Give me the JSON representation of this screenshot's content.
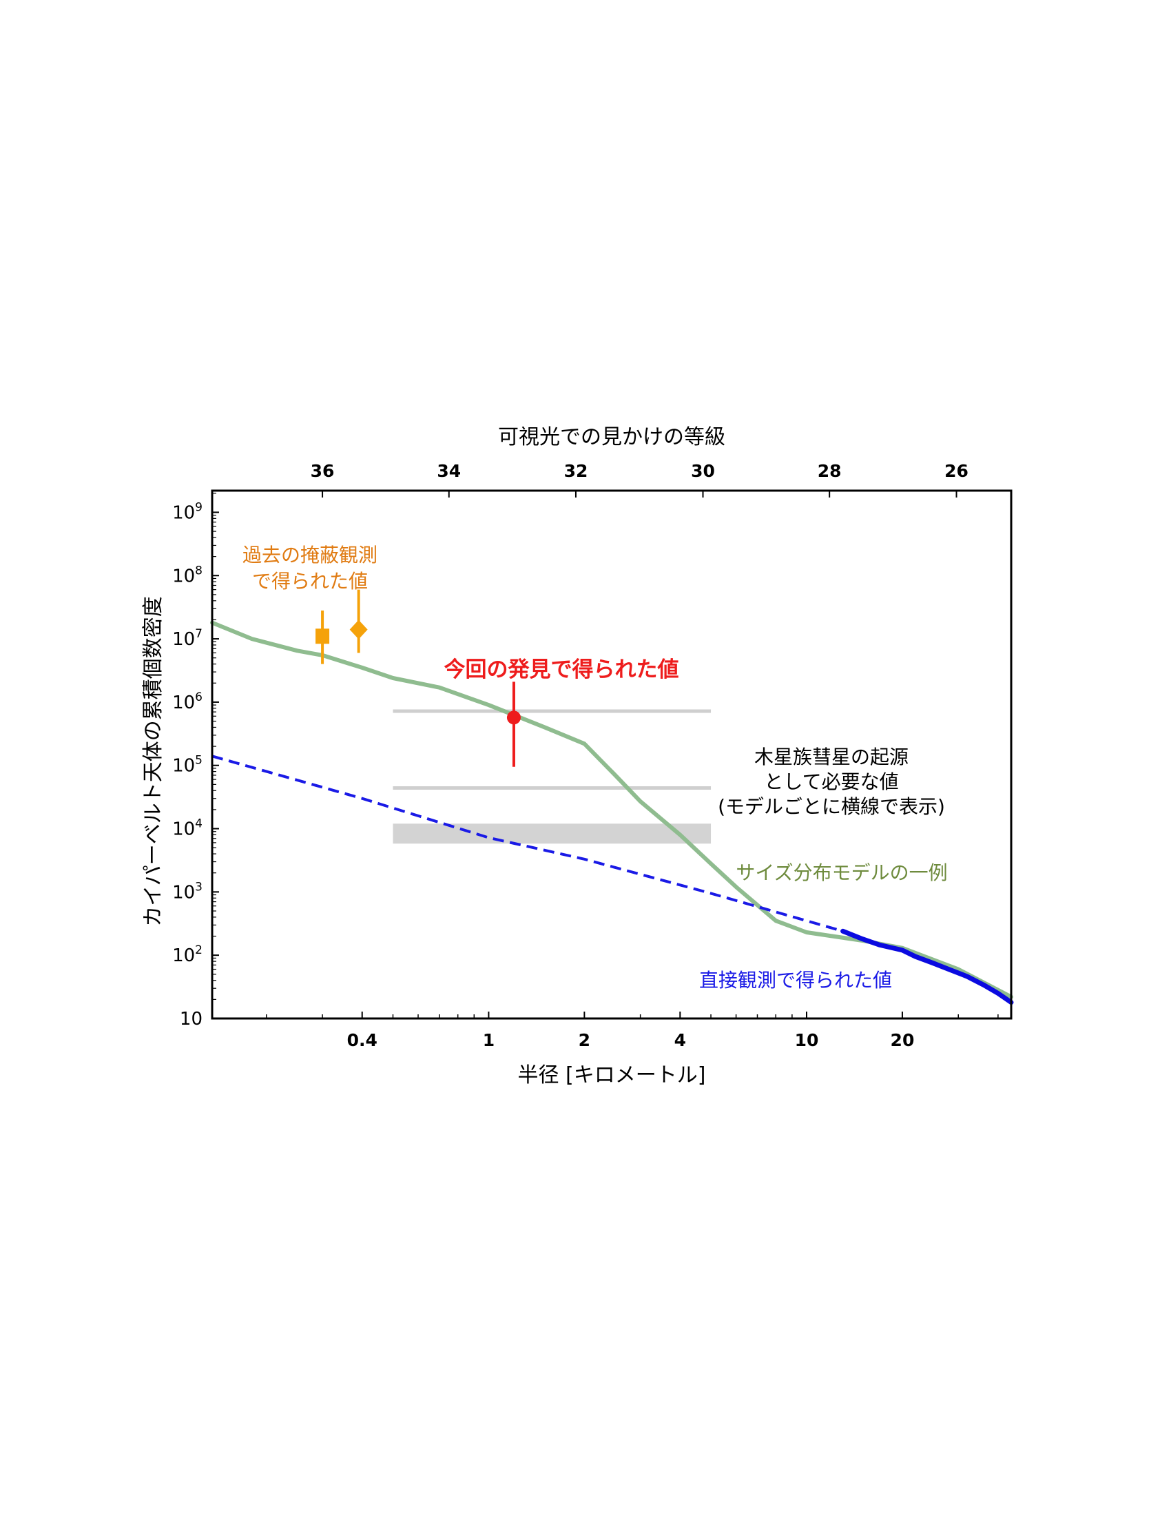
{
  "chart_data": {
    "type": "line",
    "title": "",
    "xlabel": "半径 [キロメートル]",
    "ylabel": "カイパーベルト天体の累積個数密度",
    "top_xlabel": "可視光での見かけの等級",
    "x_scale": "log",
    "y_scale": "log",
    "xlim": [
      0.135,
      44
    ],
    "ylim": [
      10,
      2200000000
    ],
    "x_ticks": [
      0.4,
      1,
      2,
      4,
      10,
      20
    ],
    "x_tick_labels": [
      "0.4",
      "1",
      "2",
      "4",
      "10",
      "20"
    ],
    "y_ticks": [
      10,
      100,
      1000,
      10000,
      100000,
      1000000,
      10000000,
      100000000,
      1000000000
    ],
    "y_tick_labels": [
      {
        "base": "10",
        "exp": ""
      },
      {
        "base": "10",
        "exp": "2"
      },
      {
        "base": "10",
        "exp": "3"
      },
      {
        "base": "10",
        "exp": "4"
      },
      {
        "base": "10",
        "exp": "5"
      },
      {
        "base": "10",
        "exp": "6"
      },
      {
        "base": "10",
        "exp": "7"
      },
      {
        "base": "10",
        "exp": "8"
      },
      {
        "base": "10",
        "exp": "9"
      }
    ],
    "top_ticks": [
      {
        "label": "36",
        "x": 0.3
      },
      {
        "label": "34",
        "x": 0.75
      },
      {
        "label": "32",
        "x": 1.88
      },
      {
        "label": "30",
        "x": 4.72
      },
      {
        "label": "28",
        "x": 11.8
      },
      {
        "label": "26",
        "x": 29.6
      }
    ],
    "series": [
      {
        "id": "model",
        "color": "#8fbc8f",
        "style": "solid",
        "x": [
          0.135,
          0.18,
          0.25,
          0.3,
          0.4,
          0.5,
          0.7,
          1.0,
          1.5,
          2.0,
          2.5,
          3.0,
          4.0,
          5.0,
          6.0,
          8.0,
          10,
          15,
          20,
          30,
          44
        ],
        "y": [
          18000000,
          10000000,
          6500000,
          5500000,
          3500000,
          2400000,
          1700000,
          900000,
          400000,
          220000,
          70000,
          27000,
          8000,
          2800,
          1200,
          350,
          230,
          170,
          130,
          60,
          22
        ]
      },
      {
        "id": "direct-extrapolated",
        "color": "#1a1ae6",
        "style": "dashed",
        "x": [
          0.135,
          0.4,
          1.0,
          2.0,
          5.0,
          10,
          13
        ],
        "y": [
          140000,
          30000,
          7200,
          3300,
          950,
          350,
          240
        ]
      },
      {
        "id": "direct-observed",
        "color": "#0a0ae0",
        "style": "solid",
        "x": [
          13,
          15,
          17,
          20,
          22,
          25,
          28,
          32,
          36,
          40,
          44
        ],
        "y": [
          240,
          180,
          145,
          120,
          95,
          75,
          60,
          46,
          34,
          25,
          18
        ]
      }
    ],
    "points": [
      {
        "id": "occultation-square",
        "marker": "square",
        "color": "#f5a20a",
        "x": 0.3,
        "y": 11000000,
        "ylo": 4000000,
        "yhi": 28000000
      },
      {
        "id": "occultation-diamond",
        "marker": "diamond",
        "color": "#f5a20a",
        "x": 0.39,
        "y": 14000000,
        "ylo": 6000000,
        "yhi": 60000000
      },
      {
        "id": "this-discovery",
        "marker": "circle",
        "color": "#ee1c1c",
        "x": 1.2,
        "y": 570000,
        "ylo": 95000,
        "yhi": 2100000
      }
    ],
    "bands": [
      {
        "x0": 0.5,
        "x1": 5.0,
        "y0": 720000,
        "y1": 720000
      },
      {
        "x0": 0.5,
        "x1": 5.0,
        "y0": 44000,
        "y1": 44000
      },
      {
        "x0": 0.5,
        "x1": 5.0,
        "y0": 5800,
        "y1": 12000
      }
    ],
    "annotations": [
      {
        "id": "ann-occultation",
        "lines": [
          "過去の掩蔽観測",
          "で得られた値"
        ],
        "color": "#e07b12",
        "bold": false
      },
      {
        "id": "ann-discovery",
        "lines": [
          "今回の発見で得られた値"
        ],
        "color": "#ee1c1c",
        "bold": true
      },
      {
        "id": "ann-jfc",
        "lines": [
          "木星族彗星の起源",
          "として必要な値",
          "(モデルごとに横線で表示)"
        ],
        "color": "#000000",
        "bold": false
      },
      {
        "id": "ann-model",
        "lines": [
          "サイズ分布モデルの一例"
        ],
        "color": "#6e8b3d",
        "bold": false
      },
      {
        "id": "ann-direct",
        "lines": [
          "直接観測で得られた値"
        ],
        "color": "#1a1ae6",
        "bold": false
      }
    ]
  }
}
